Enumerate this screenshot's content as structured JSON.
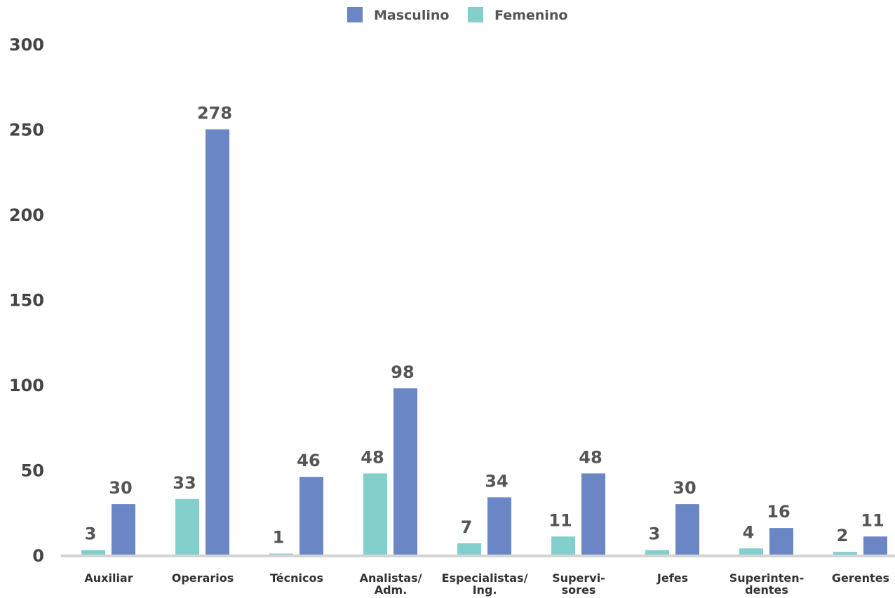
{
  "chart_data": {
    "type": "bar",
    "categories": [
      [
        "Auxiliar"
      ],
      [
        "Operarios"
      ],
      [
        "Técnicos"
      ],
      [
        "Analistas/",
        "Adm."
      ],
      [
        "Especialistas/",
        "Ing."
      ],
      [
        "Supervi-",
        "sores"
      ],
      [
        "Jefes"
      ],
      [
        "Superinten-",
        "dentes"
      ],
      [
        "Gerentes"
      ]
    ],
    "series": [
      {
        "name": "Femenino",
        "color": "#82cfcc",
        "values": [
          3,
          33,
          1,
          48,
          7,
          11,
          3,
          4,
          2
        ]
      },
      {
        "name": "Masculino",
        "color": "#6a86c4",
        "values": [
          30,
          278,
          46,
          98,
          34,
          48,
          30,
          16,
          11
        ]
      }
    ],
    "legend": {
      "position": "top-center",
      "order": [
        "Masculino",
        "Femenino"
      ]
    },
    "y_ticks": [
      "0",
      "50",
      "100",
      "150",
      "200",
      "250",
      "300"
    ],
    "ylim": [
      0,
      300
    ],
    "grid": false
  }
}
